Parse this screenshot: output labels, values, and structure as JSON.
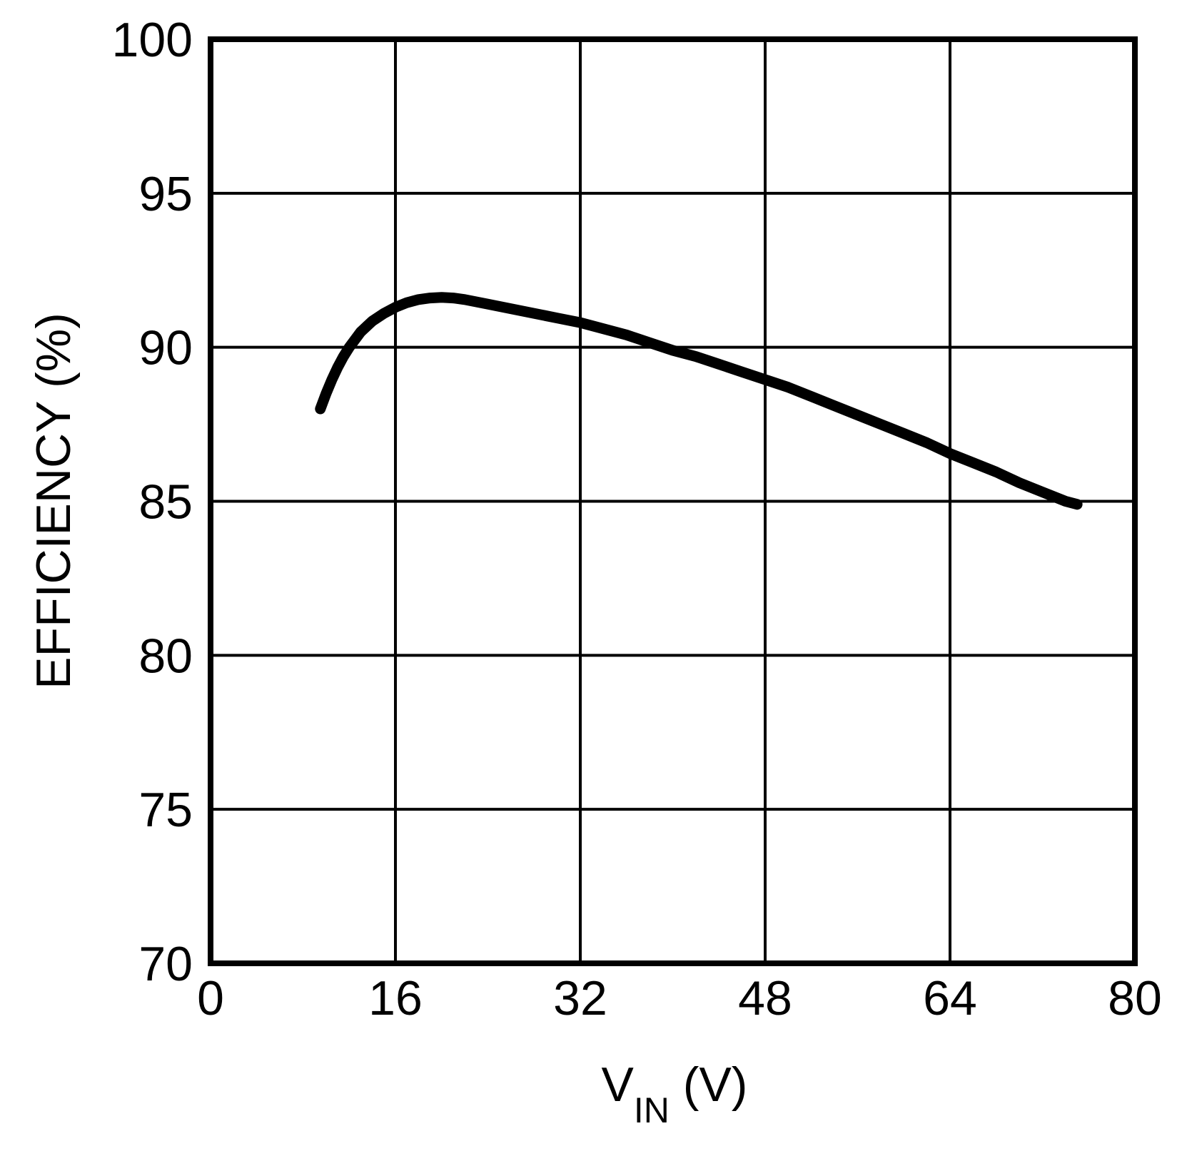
{
  "chart_data": {
    "type": "line",
    "title": "",
    "xlabel_main": "V",
    "xlabel_sub": "IN",
    "xlabel_unit": " (V)",
    "ylabel": "EFFICIENCY (%)",
    "xlim": [
      0,
      80
    ],
    "ylim": [
      70,
      100
    ],
    "xticks": [
      0,
      16,
      32,
      48,
      64,
      80
    ],
    "yticks": [
      70,
      75,
      80,
      85,
      90,
      95,
      100
    ],
    "grid": true,
    "legend_position": "none",
    "series": [
      {
        "name": "efficiency-vs-vin",
        "color": "#000000",
        "points": [
          [
            9.5,
            88.0
          ],
          [
            10,
            88.5
          ],
          [
            10.5,
            88.95
          ],
          [
            11,
            89.35
          ],
          [
            11.5,
            89.7
          ],
          [
            12,
            90.0
          ],
          [
            13,
            90.5
          ],
          [
            14,
            90.85
          ],
          [
            15,
            91.1
          ],
          [
            16,
            91.3
          ],
          [
            17,
            91.45
          ],
          [
            18,
            91.55
          ],
          [
            19,
            91.6
          ],
          [
            20,
            91.62
          ],
          [
            21,
            91.6
          ],
          [
            22,
            91.55
          ],
          [
            24,
            91.4
          ],
          [
            26,
            91.25
          ],
          [
            28,
            91.1
          ],
          [
            30,
            90.95
          ],
          [
            32,
            90.8
          ],
          [
            34,
            90.6
          ],
          [
            36,
            90.4
          ],
          [
            38,
            90.15
          ],
          [
            40,
            89.9
          ],
          [
            42,
            89.7
          ],
          [
            44,
            89.45
          ],
          [
            46,
            89.2
          ],
          [
            48,
            88.95
          ],
          [
            50,
            88.7
          ],
          [
            52,
            88.4
          ],
          [
            54,
            88.1
          ],
          [
            56,
            87.8
          ],
          [
            58,
            87.5
          ],
          [
            60,
            87.2
          ],
          [
            62,
            86.9
          ],
          [
            64,
            86.55
          ],
          [
            66,
            86.25
          ],
          [
            68,
            85.95
          ],
          [
            70,
            85.6
          ],
          [
            72,
            85.3
          ],
          [
            74,
            85.0
          ],
          [
            75,
            84.9
          ]
        ]
      }
    ]
  },
  "colors": {
    "background": "#ffffff",
    "foreground": "#000000"
  }
}
